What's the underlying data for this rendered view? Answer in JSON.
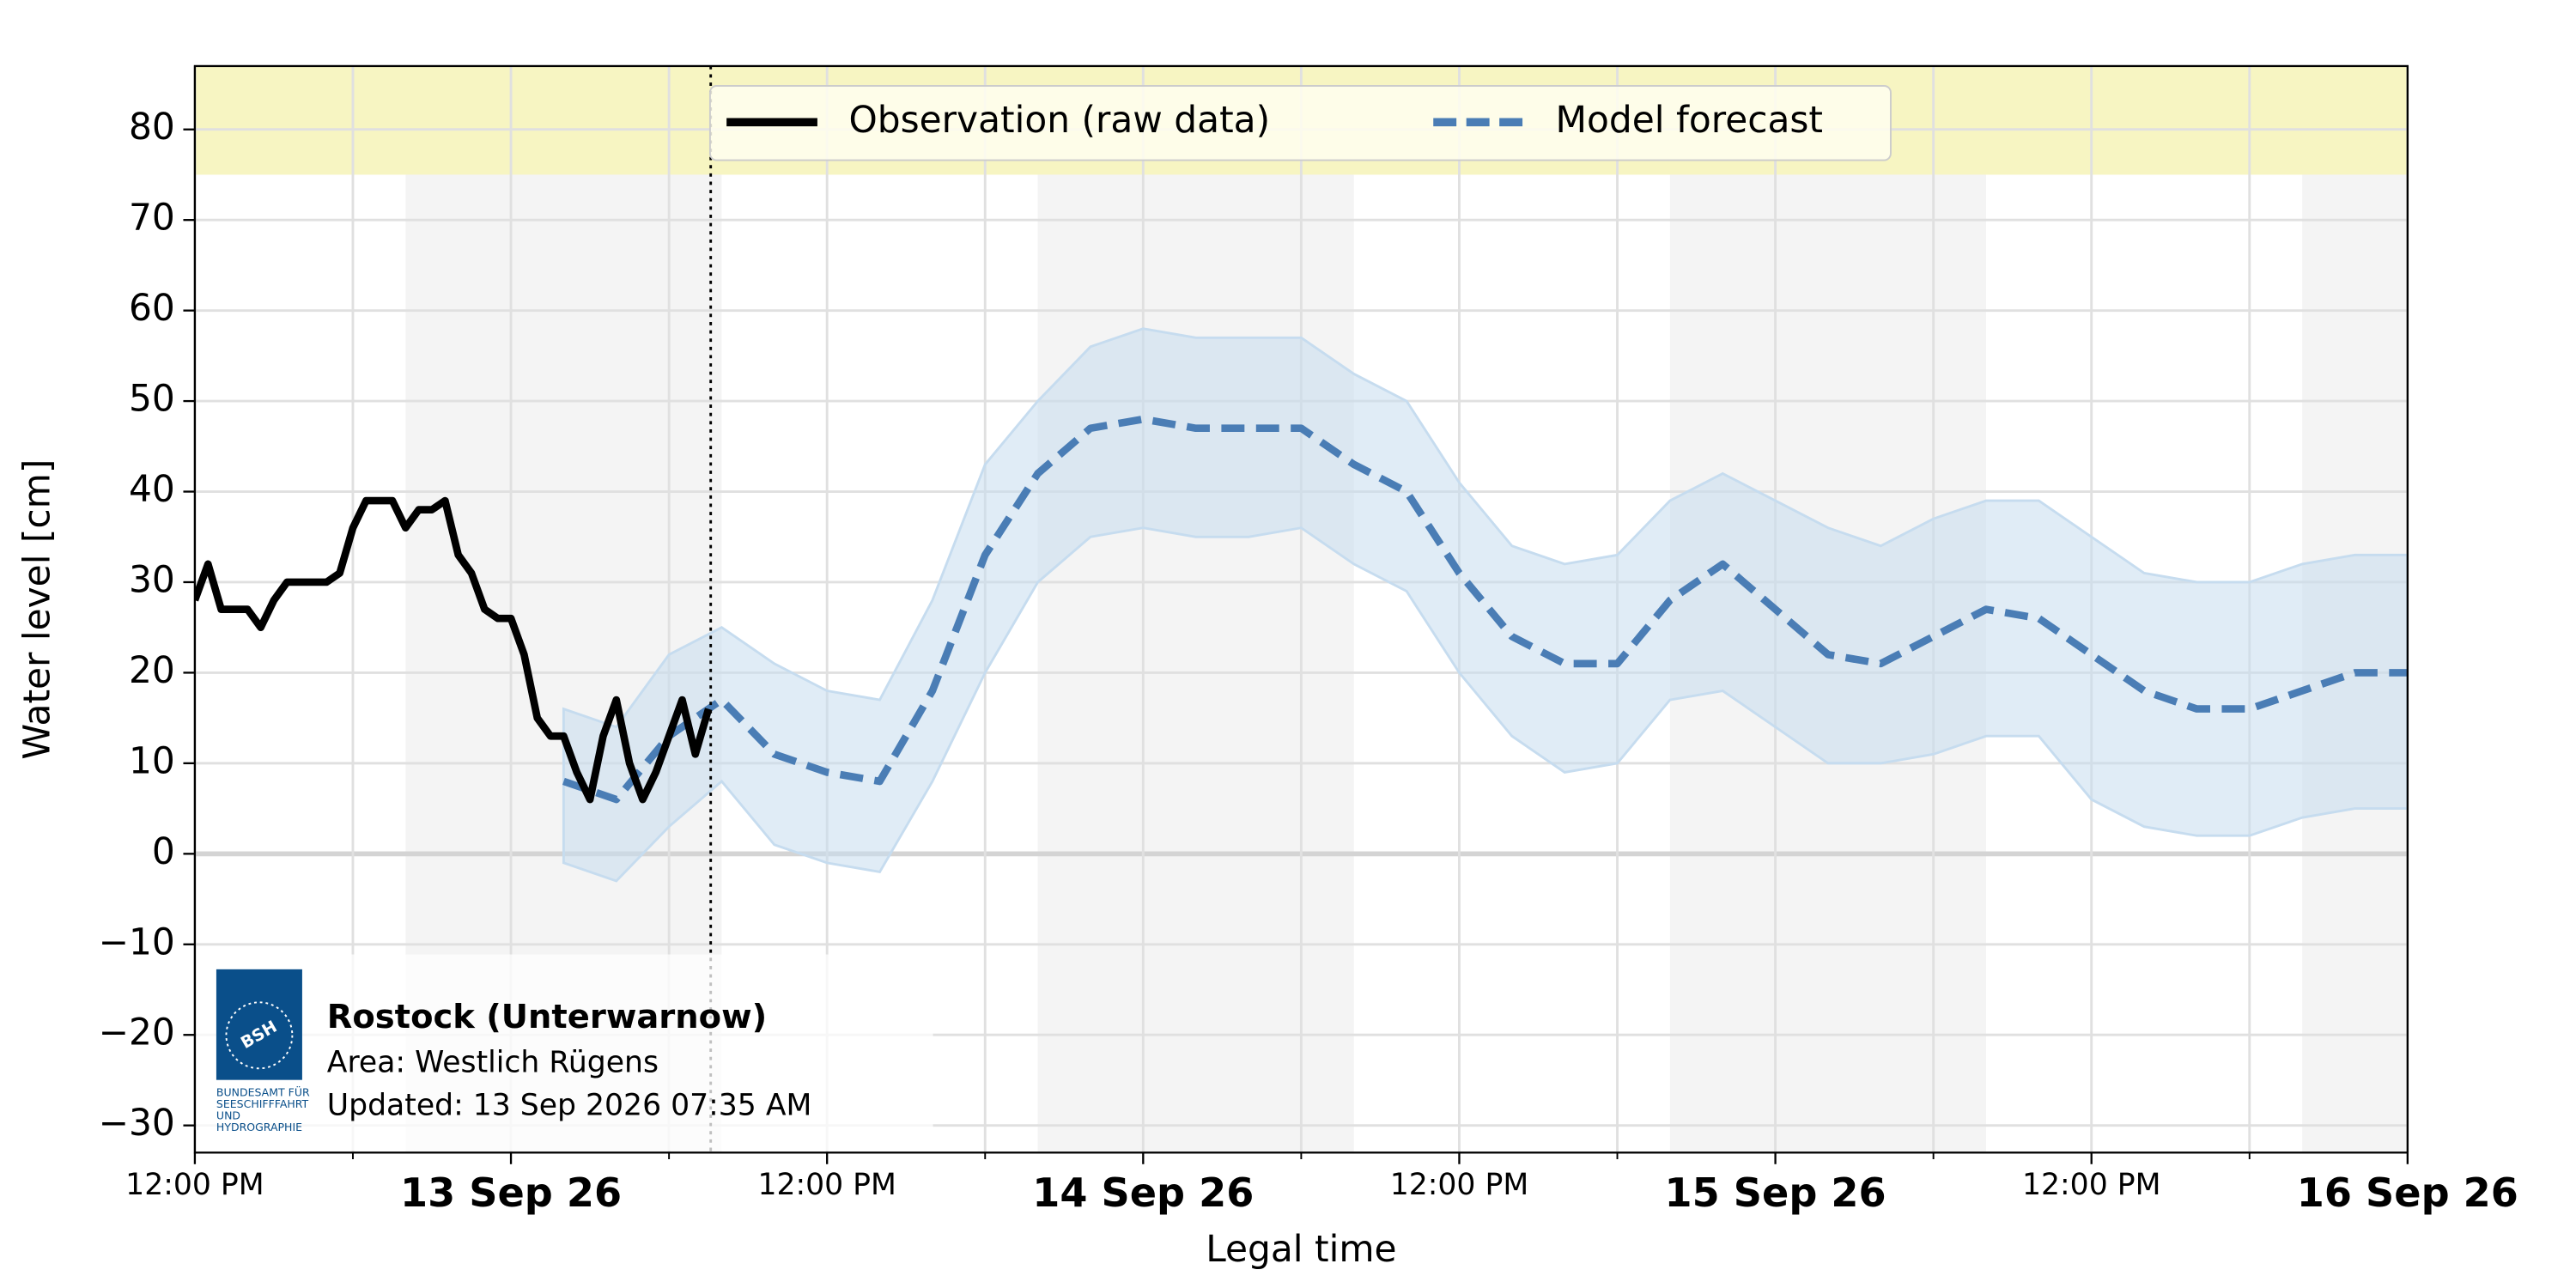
{
  "chart_data": {
    "type": "line",
    "xlabel": "Legal time",
    "ylabel": "Water level [cm]",
    "xlim": [
      "2026-09-12T12:00",
      "2026-09-16T00:00"
    ],
    "ylim": [
      -33,
      87
    ],
    "yticks": [
      {
        "value": -30,
        "label": "−30"
      },
      {
        "value": -20,
        "label": "−20"
      },
      {
        "value": -10,
        "label": "−10"
      },
      0,
      10,
      20,
      30,
      40,
      50,
      60,
      70,
      80
    ],
    "xticks": [
      {
        "value": "2026-09-12T12:00",
        "label": "12:00 PM"
      },
      {
        "value": "2026-09-13T00:00",
        "label": "13 Sep 26"
      },
      {
        "value": "2026-09-13T12:00",
        "label": "12:00 PM"
      },
      {
        "value": "2026-09-14T00:00",
        "label": "14 Sep 26"
      },
      {
        "value": "2026-09-14T12:00",
        "label": "12:00 PM"
      },
      {
        "value": "2026-09-15T00:00",
        "label": "15 Sep 26"
      },
      {
        "value": "2026-09-15T12:00",
        "label": "12:00 PM"
      },
      {
        "value": "2026-09-16T00:00",
        "label": "16 Sep 26"
      }
    ],
    "xticks_minor": [
      "2026-09-12T18:00",
      "2026-09-13T06:00",
      "2026-09-13T18:00",
      "2026-09-14T06:00",
      "2026-09-14T18:00",
      "2026-09-15T06:00",
      "2026-09-15T18:00"
    ],
    "grid": true,
    "warning_band_from": 75,
    "night_shading": [
      [
        "2026-09-12T20:00",
        "2026-09-13T08:00"
      ],
      [
        "2026-09-13T20:00",
        "2026-09-14T08:00"
      ],
      [
        "2026-09-14T20:00",
        "2026-09-15T08:00"
      ],
      [
        "2026-09-15T20:00",
        "2026-09-16T08:00"
      ]
    ],
    "now": "2026-09-13T07:35",
    "legend": "upper center",
    "series": [
      {
        "name": "Observation (raw data)",
        "color": "#000000",
        "style": "solid",
        "x": [
          "2026-09-12T12:00",
          "2026-09-12T12:30",
          "2026-09-12T13:00",
          "2026-09-12T13:30",
          "2026-09-12T14:00",
          "2026-09-12T14:30",
          "2026-09-12T15:00",
          "2026-09-12T15:30",
          "2026-09-12T16:00",
          "2026-09-12T16:30",
          "2026-09-12T17:00",
          "2026-09-12T17:30",
          "2026-09-12T18:00",
          "2026-09-12T18:30",
          "2026-09-12T19:00",
          "2026-09-12T19:30",
          "2026-09-12T20:00",
          "2026-09-12T20:30",
          "2026-09-12T21:00",
          "2026-09-12T21:30",
          "2026-09-12T22:00",
          "2026-09-12T22:30",
          "2026-09-12T23:00",
          "2026-09-12T23:30",
          "2026-09-13T00:00",
          "2026-09-13T00:30",
          "2026-09-13T01:00",
          "2026-09-13T01:30",
          "2026-09-13T02:00",
          "2026-09-13T02:30",
          "2026-09-13T03:00",
          "2026-09-13T03:30",
          "2026-09-13T04:00",
          "2026-09-13T04:30",
          "2026-09-13T05:00",
          "2026-09-13T05:30",
          "2026-09-13T06:00",
          "2026-09-13T06:30",
          "2026-09-13T07:00",
          "2026-09-13T07:30"
        ],
        "values": [
          28,
          32,
          27,
          27,
          27,
          25,
          28,
          30,
          30,
          30,
          30,
          31,
          36,
          39,
          39,
          39,
          36,
          38,
          38,
          39,
          33,
          31,
          27,
          26,
          26,
          22,
          15,
          13,
          13,
          9,
          6,
          13,
          17,
          10,
          6,
          9,
          13,
          17,
          11,
          16
        ]
      },
      {
        "name": "Model forecast",
        "color": "#4a7db5",
        "style": "dashed",
        "band_color": "#c6dcef",
        "x": [
          "2026-09-13T02:00",
          "2026-09-13T04:00",
          "2026-09-13T06:00",
          "2026-09-13T08:00",
          "2026-09-13T10:00",
          "2026-09-13T12:00",
          "2026-09-13T14:00",
          "2026-09-13T16:00",
          "2026-09-13T18:00",
          "2026-09-13T20:00",
          "2026-09-13T22:00",
          "2026-09-14T00:00",
          "2026-09-14T02:00",
          "2026-09-14T04:00",
          "2026-09-14T06:00",
          "2026-09-14T08:00",
          "2026-09-14T10:00",
          "2026-09-14T12:00",
          "2026-09-14T14:00",
          "2026-09-14T16:00",
          "2026-09-14T18:00",
          "2026-09-14T20:00",
          "2026-09-14T22:00",
          "2026-09-15T00:00",
          "2026-09-15T02:00",
          "2026-09-15T04:00",
          "2026-09-15T06:00",
          "2026-09-15T08:00",
          "2026-09-15T10:00",
          "2026-09-15T12:00",
          "2026-09-15T14:00",
          "2026-09-15T16:00",
          "2026-09-15T18:00",
          "2026-09-15T20:00",
          "2026-09-15T22:00",
          "2026-09-16T00:00"
        ],
        "values": [
          8,
          6,
          13,
          17,
          11,
          9,
          8,
          18,
          33,
          42,
          47,
          48,
          47,
          47,
          47,
          43,
          40,
          31,
          24,
          21,
          21,
          28,
          32,
          27,
          22,
          21,
          24,
          27,
          26,
          22,
          18,
          16,
          16,
          18,
          20,
          20
        ],
        "lower": [
          -1,
          -3,
          3,
          8,
          1,
          -1,
          -2,
          8,
          20,
          30,
          35,
          36,
          35,
          35,
          36,
          32,
          29,
          20,
          13,
          9,
          10,
          17,
          18,
          14,
          10,
          10,
          11,
          13,
          13,
          6,
          3,
          2,
          2,
          4,
          5,
          5
        ],
        "upper": [
          16,
          14,
          22,
          25,
          21,
          18,
          17,
          28,
          43,
          50,
          56,
          58,
          57,
          57,
          57,
          53,
          50,
          41,
          34,
          32,
          33,
          39,
          42,
          39,
          36,
          34,
          37,
          39,
          39,
          35,
          31,
          30,
          30,
          32,
          33,
          33
        ]
      }
    ],
    "info": {
      "station": "Rostock (Unterwarnow)",
      "area": "Area: Westlich Rügens",
      "updated": "Updated: 13 Sep 2026 07:35 AM",
      "logo": {
        "mark": "BSH",
        "lines": [
          "BUNDESAMT FÜR",
          "SEESCHIFFFAHRT",
          "UND",
          "HYDROGRAPHIE"
        ]
      }
    }
  }
}
